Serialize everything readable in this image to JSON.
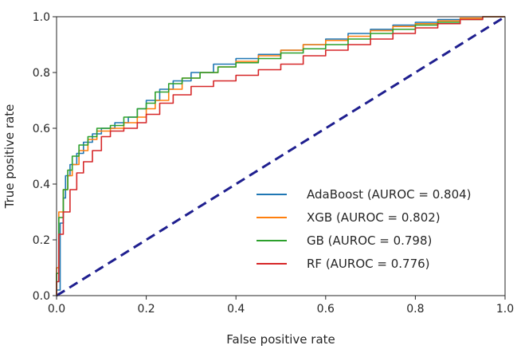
{
  "chart_data": {
    "type": "line",
    "title": "",
    "xlabel": "False positive rate",
    "ylabel": "True positive rate",
    "xlim": [
      0.0,
      1.0
    ],
    "ylim": [
      0.0,
      1.0
    ],
    "grid": false,
    "legend_position": "lower-right",
    "xticks": [
      "0.0",
      "0.2",
      "0.4",
      "0.6",
      "0.8",
      "1.0"
    ],
    "yticks": [
      "0.0",
      "0.2",
      "0.4",
      "0.6",
      "0.8",
      "1.0"
    ],
    "reference_line": {
      "name": "chance",
      "x": [
        0.0,
        1.0
      ],
      "y": [
        0.0,
        1.0
      ],
      "color": "#1f1f8f",
      "style": "dashed"
    },
    "series": [
      {
        "name": "AdaBoost (AUROC = 0.804)",
        "color": "#1f77b4",
        "x": [
          0.0,
          0.008,
          0.015,
          0.02,
          0.03,
          0.045,
          0.06,
          0.08,
          0.1,
          0.13,
          0.16,
          0.18,
          0.2,
          0.23,
          0.26,
          0.3,
          0.35,
          0.4,
          0.45,
          0.5,
          0.55,
          0.6,
          0.65,
          0.7,
          0.75,
          0.8,
          0.85,
          0.9,
          0.95,
          1.0
        ],
        "y": [
          0.0,
          0.02,
          0.26,
          0.35,
          0.43,
          0.47,
          0.51,
          0.55,
          0.58,
          0.6,
          0.62,
          0.64,
          0.67,
          0.7,
          0.74,
          0.77,
          0.8,
          0.83,
          0.85,
          0.865,
          0.88,
          0.9,
          0.92,
          0.94,
          0.955,
          0.97,
          0.98,
          0.99,
          0.995,
          1.0
        ]
      },
      {
        "name": "XGB (AUROC = 0.802)",
        "color": "#ff7f0e",
        "x": [
          0.0,
          0.005,
          0.015,
          0.025,
          0.035,
          0.05,
          0.07,
          0.09,
          0.12,
          0.15,
          0.18,
          0.2,
          0.22,
          0.25,
          0.28,
          0.32,
          0.36,
          0.4,
          0.45,
          0.5,
          0.55,
          0.6,
          0.65,
          0.7,
          0.75,
          0.8,
          0.85,
          0.9,
          0.95,
          1.0
        ],
        "y": [
          0.0,
          0.1,
          0.3,
          0.38,
          0.43,
          0.47,
          0.52,
          0.56,
          0.59,
          0.6,
          0.62,
          0.64,
          0.67,
          0.7,
          0.74,
          0.78,
          0.8,
          0.82,
          0.84,
          0.86,
          0.88,
          0.9,
          0.915,
          0.93,
          0.95,
          0.965,
          0.975,
          0.985,
          0.995,
          1.0
        ]
      },
      {
        "name": "GB (AUROC = 0.798)",
        "color": "#2ca02c",
        "x": [
          0.0,
          0.005,
          0.015,
          0.025,
          0.035,
          0.05,
          0.07,
          0.09,
          0.12,
          0.15,
          0.18,
          0.2,
          0.22,
          0.25,
          0.28,
          0.32,
          0.36,
          0.4,
          0.45,
          0.5,
          0.55,
          0.6,
          0.65,
          0.7,
          0.75,
          0.8,
          0.85,
          0.9,
          0.95,
          1.0
        ],
        "y": [
          0.0,
          0.08,
          0.28,
          0.38,
          0.45,
          0.5,
          0.54,
          0.57,
          0.6,
          0.61,
          0.64,
          0.67,
          0.69,
          0.73,
          0.76,
          0.78,
          0.8,
          0.82,
          0.835,
          0.85,
          0.87,
          0.885,
          0.9,
          0.92,
          0.94,
          0.955,
          0.97,
          0.98,
          0.99,
          1.0
        ]
      },
      {
        "name": "RF (AUROC = 0.776)",
        "color": "#d62728",
        "x": [
          0.0,
          0.005,
          0.015,
          0.03,
          0.045,
          0.06,
          0.08,
          0.1,
          0.12,
          0.15,
          0.18,
          0.2,
          0.23,
          0.26,
          0.3,
          0.35,
          0.4,
          0.45,
          0.5,
          0.55,
          0.6,
          0.65,
          0.7,
          0.75,
          0.8,
          0.85,
          0.9,
          0.95,
          1.0
        ],
        "y": [
          0.0,
          0.05,
          0.22,
          0.3,
          0.38,
          0.44,
          0.48,
          0.52,
          0.57,
          0.59,
          0.6,
          0.62,
          0.65,
          0.69,
          0.72,
          0.75,
          0.77,
          0.79,
          0.81,
          0.83,
          0.86,
          0.88,
          0.9,
          0.92,
          0.94,
          0.96,
          0.975,
          0.99,
          1.0
        ]
      }
    ]
  }
}
